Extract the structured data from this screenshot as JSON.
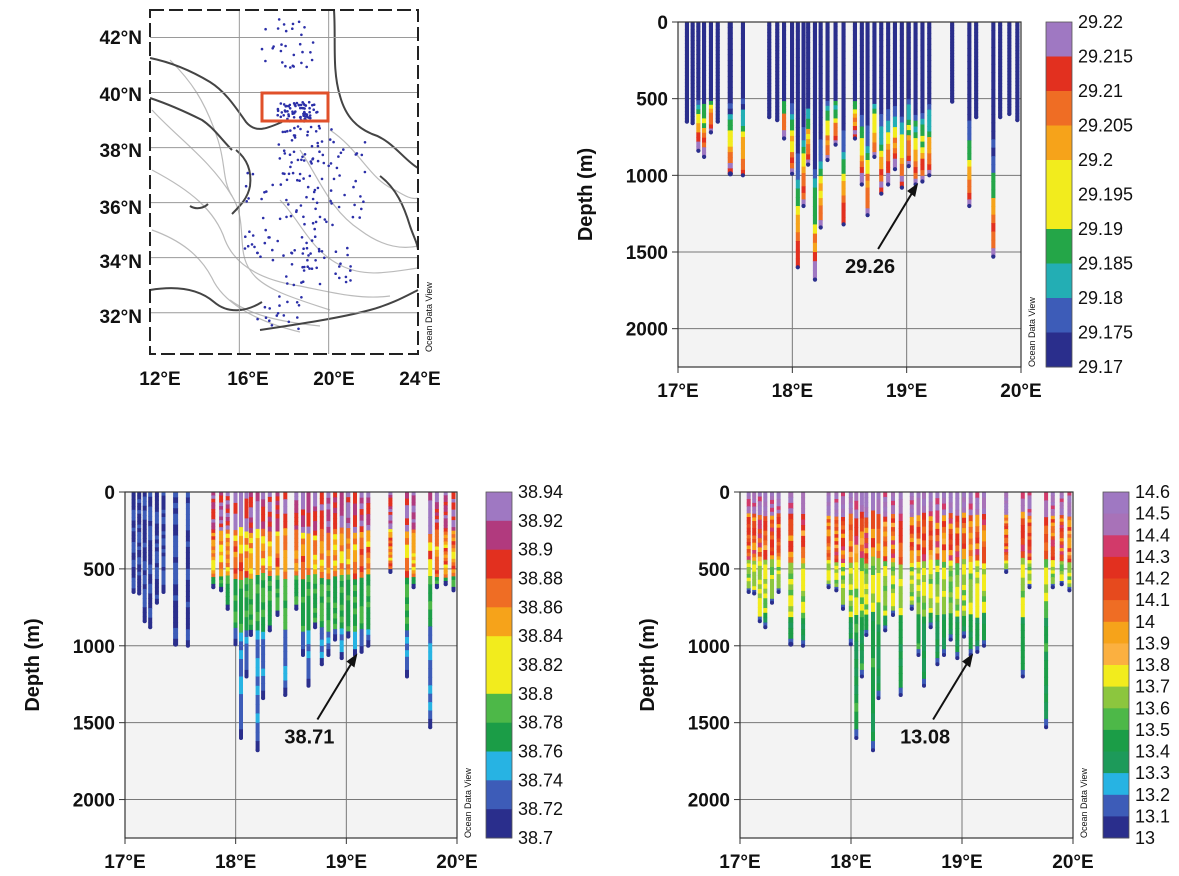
{
  "map": {
    "lat_labels": [
      "42°N",
      "40°N",
      "38°N",
      "36°N",
      "34°N",
      "32°N"
    ],
    "lon_labels": [
      "12°E",
      "16°E",
      "20°E",
      "24°E"
    ],
    "watermark": "Ocean Data View",
    "colors": {
      "stations": "#2b2fa8",
      "box": "#e0502a",
      "coast": "#444444",
      "bathy": "#bbbbbb"
    }
  },
  "sections": [
    {
      "id": "density",
      "ylabel": "Depth (m)",
      "y_ticks": [
        "0",
        "500",
        "1000",
        "1500",
        "2000"
      ],
      "x_ticks": [
        "17°E",
        "18°E",
        "19°E",
        "20°E"
      ],
      "watermark": "Ocean Data View",
      "annotation": "29.26",
      "colorbar_labels": [
        "29.22",
        "29.215",
        "29.21",
        "29.205",
        "29.2",
        "29.195",
        "29.19",
        "29.185",
        "29.18",
        "29.175",
        "29.17"
      ]
    },
    {
      "id": "salinity",
      "ylabel": "Depth (m)",
      "y_ticks": [
        "0",
        "500",
        "1000",
        "1500",
        "2000"
      ],
      "x_ticks": [
        "17°E",
        "18°E",
        "19°E",
        "20°E"
      ],
      "watermark": "Ocean Data View",
      "annotation": "38.71",
      "colorbar_labels": [
        "38.94",
        "38.92",
        "38.9",
        "38.88",
        "38.86",
        "38.84",
        "38.82",
        "38.8",
        "38.78",
        "38.76",
        "38.74",
        "38.72",
        "38.7"
      ]
    },
    {
      "id": "temperature",
      "ylabel": "Depth (m)",
      "y_ticks": [
        "0",
        "500",
        "1000",
        "1500",
        "2000"
      ],
      "x_ticks": [
        "17°E",
        "18°E",
        "19°E",
        "20°E"
      ],
      "watermark": "Ocean Data View",
      "annotation": "13.08",
      "colorbar_labels": [
        "14.6",
        "14.5",
        "14.4",
        "14.3",
        "14.2",
        "14.1",
        "14",
        "13.9",
        "13.8",
        "13.7",
        "13.6",
        "13.5",
        "13.4",
        "13.3",
        "13.2",
        "13.1",
        "13"
      ]
    }
  ],
  "chart_data": [
    {
      "type": "scatter",
      "title": "",
      "xlabel": "",
      "ylabel": "",
      "xlim": [
        12,
        24
      ],
      "ylim": [
        30.5,
        43
      ],
      "x_tick_labels": [
        "12°E",
        "16°E",
        "20°E",
        "24°E"
      ],
      "y_tick_labels": [
        "42°N",
        "40°N",
        "38°N",
        "36°N",
        "34°N",
        "32°N"
      ],
      "grid": true,
      "highlight_box": {
        "lon": [
          17,
          20
        ],
        "lat": [
          39,
          40
        ]
      }
    },
    {
      "type": "heatmap",
      "xlabel": "",
      "ylabel": "Depth (m)",
      "xlim": [
        17,
        20
      ],
      "ylim": [
        2250,
        0
      ],
      "colorbar": {
        "min": 29.17,
        "max": 29.22,
        "labels": [
          "29.22",
          "29.215",
          "29.21",
          "29.205",
          "29.2",
          "29.195",
          "29.19",
          "29.185",
          "29.18",
          "29.175",
          "29.17"
        ]
      },
      "annotation": {
        "text": "29.26",
        "lon": 19.1,
        "depth": 1040
      },
      "grid": true
    },
    {
      "type": "heatmap",
      "xlabel": "",
      "ylabel": "Depth (m)",
      "xlim": [
        17,
        20
      ],
      "ylim": [
        2250,
        0
      ],
      "colorbar": {
        "min": 38.7,
        "max": 38.94,
        "labels": [
          "38.94",
          "38.92",
          "38.9",
          "38.88",
          "38.86",
          "38.84",
          "38.82",
          "38.8",
          "38.78",
          "38.76",
          "38.74",
          "38.72",
          "38.7"
        ]
      },
      "annotation": {
        "text": "38.71",
        "lon": 19.1,
        "depth": 1060
      },
      "grid": true
    },
    {
      "type": "heatmap",
      "xlabel": "",
      "ylabel": "Depth (m)",
      "xlim": [
        17,
        20
      ],
      "ylim": [
        2250,
        0
      ],
      "colorbar": {
        "min": 13.0,
        "max": 14.6,
        "labels": [
          "14.6",
          "14.5",
          "14.4",
          "14.3",
          "14.2",
          "14.1",
          "14",
          "13.9",
          "13.8",
          "13.7",
          "13.6",
          "13.5",
          "13.4",
          "13.3",
          "13.2",
          "13.1",
          "13"
        ]
      },
      "annotation": {
        "text": "13.08",
        "lon": 19.1,
        "depth": 1050
      },
      "grid": true
    }
  ]
}
